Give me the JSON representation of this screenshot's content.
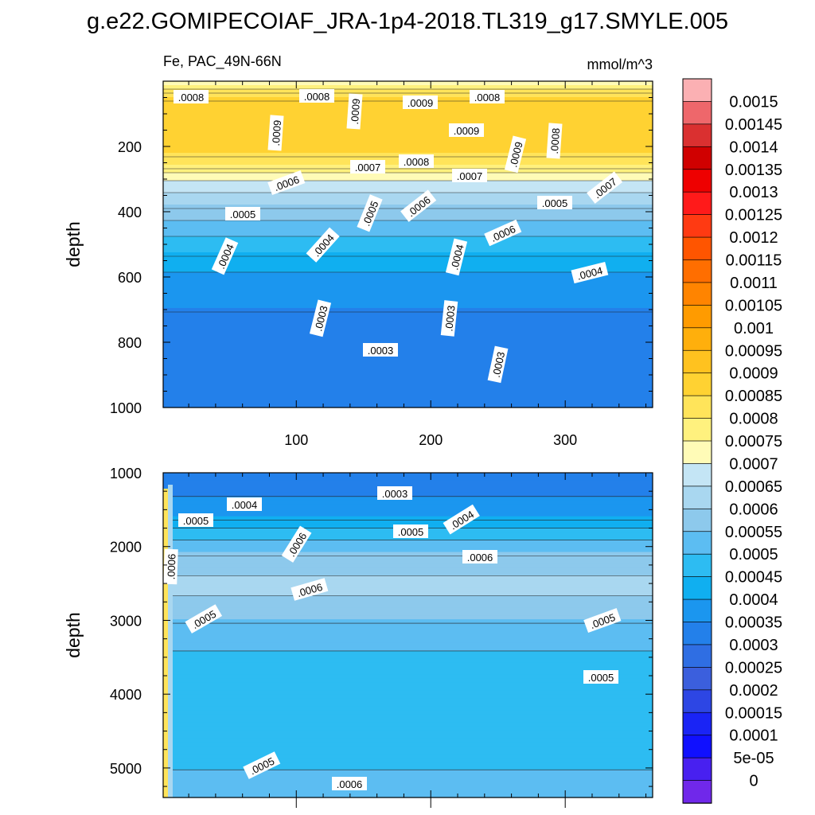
{
  "title": "g.e22.GOMIPECOIAF_JRA-1p4-2018.TL319_g17.SMYLE.005",
  "chart_data": [
    {
      "type": "heatmap",
      "panel": "upper",
      "left_label": "Fe, PAC_49N-66N",
      "right_label": "mmol/m^3",
      "xlabel": "",
      "ylabel": "depth",
      "xlim": [
        1,
        365
      ],
      "ylim": [
        1000,
        0
      ],
      "xticks": [
        "100",
        "200",
        "300"
      ],
      "yticks": [
        "200",
        "400",
        "600",
        "800",
        "1000"
      ],
      "contour_labels": [
        ".0008",
        ".0008",
        ".0009",
        ".0009",
        ".0008",
        ".0009",
        ".0009",
        ".0008",
        ".0009",
        ".0007",
        ".0008",
        ".0007",
        ".0007",
        ".0006",
        ".0005",
        ".0005",
        ".0006",
        ".0006",
        ".0005",
        ".0004",
        ".0004",
        ".0004",
        ".0004",
        ".0003",
        ".0003",
        ".0003",
        ".0003"
      ],
      "profile": [
        {
          "depth": 0,
          "value": 0.0007
        },
        {
          "depth": 25,
          "value": 0.0008
        },
        {
          "depth": 80,
          "value": 0.0009
        },
        {
          "depth": 200,
          "value": 0.00088
        },
        {
          "depth": 260,
          "value": 0.0008
        },
        {
          "depth": 300,
          "value": 0.0007
        },
        {
          "depth": 380,
          "value": 0.0006
        },
        {
          "depth": 470,
          "value": 0.0005
        },
        {
          "depth": 580,
          "value": 0.0004
        },
        {
          "depth": 700,
          "value": 0.00035
        },
        {
          "depth": 850,
          "value": 0.0003
        },
        {
          "depth": 1000,
          "value": 0.0003
        }
      ]
    },
    {
      "type": "heatmap",
      "panel": "lower",
      "xlabel": "",
      "ylabel": "depth",
      "xlim": [
        1,
        365
      ],
      "ylim": [
        5400,
        1000
      ],
      "yticks": [
        "1000",
        "2000",
        "3000",
        "4000",
        "5000"
      ],
      "contour_labels": [
        ".0003",
        ".0004",
        ".0005",
        ".0004",
        ".0005",
        ".0006",
        ".0006",
        ".0006",
        ".0006",
        ".0005",
        ".0005",
        ".0005",
        ".0005",
        ".0006"
      ],
      "profile": [
        {
          "depth": 1000,
          "value": 0.0003
        },
        {
          "depth": 1300,
          "value": 0.00035
        },
        {
          "depth": 1600,
          "value": 0.0004
        },
        {
          "depth": 1800,
          "value": 0.00048
        },
        {
          "depth": 2100,
          "value": 0.00055
        },
        {
          "depth": 2500,
          "value": 0.00062
        },
        {
          "depth": 3000,
          "value": 0.00055
        },
        {
          "depth": 3400,
          "value": 0.0005
        },
        {
          "depth": 4000,
          "value": 0.00048
        },
        {
          "depth": 5000,
          "value": 0.0005
        },
        {
          "depth": 5400,
          "value": 0.00052
        }
      ]
    }
  ],
  "colorbar": {
    "levels": [
      "0.0015",
      "0.00145",
      "0.0014",
      "0.00135",
      "0.0013",
      "0.00125",
      "0.0012",
      "0.00115",
      "0.0011",
      "0.00105",
      "0.001",
      "0.00095",
      "0.0009",
      "0.00085",
      "0.0008",
      "0.00075",
      "0.0007",
      "0.00065",
      "0.0006",
      "0.00055",
      "0.0005",
      "0.00045",
      "0.0004",
      "0.00035",
      "0.0003",
      "0.00025",
      "0.0002",
      "0.00015",
      "0.0001",
      "5e-05",
      "0"
    ],
    "colors": [
      "#fbb0b3",
      "#ee676b",
      "#da3030",
      "#d00000",
      "#ee0000",
      "#ff1a1a",
      "#ff3a12",
      "#ff5500",
      "#ff6e00",
      "#ff8400",
      "#ff9b00",
      "#ffaf0c",
      "#ffc21f",
      "#ffd232",
      "#ffe45a",
      "#fff17e",
      "#fffbb7",
      "#c4e5f5",
      "#a9d7f0",
      "#8dc9ec",
      "#5cbdf2",
      "#2dbcf2",
      "#10aff0",
      "#1b96ef",
      "#2380ea",
      "#2f6ee3",
      "#3b5fdd",
      "#2d46e4",
      "#1a24f5",
      "#1010ff",
      "#4820f0",
      "#7028ea"
    ]
  }
}
